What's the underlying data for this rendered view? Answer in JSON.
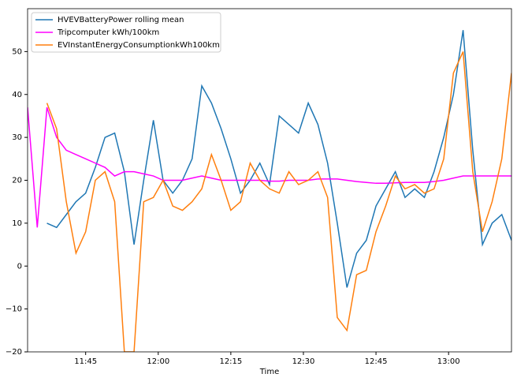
{
  "chart_data": {
    "type": "line",
    "xlabel": "Time",
    "x": [
      "11:33",
      "11:35",
      "11:37",
      "11:39",
      "11:41",
      "11:43",
      "11:45",
      "11:47",
      "11:49",
      "11:51",
      "11:53",
      "11:55",
      "11:57",
      "11:59",
      "12:01",
      "12:03",
      "12:05",
      "12:07",
      "12:09",
      "12:11",
      "12:13",
      "12:15",
      "12:17",
      "12:19",
      "12:21",
      "12:23",
      "12:25",
      "12:27",
      "12:29",
      "12:31",
      "12:33",
      "12:35",
      "12:37",
      "12:39",
      "12:41",
      "12:43",
      "12:45",
      "12:47",
      "12:49",
      "12:51",
      "12:53",
      "12:55",
      "12:57",
      "12:59",
      "13:01",
      "13:03",
      "13:05",
      "13:07",
      "13:09",
      "13:11",
      "13:13"
    ],
    "series": [
      {
        "name": "HVEVBatteryPower rolling mean",
        "color": "#1f77b4",
        "values": [
          null,
          null,
          10,
          9,
          12,
          15,
          17,
          23,
          30,
          31,
          22,
          5,
          20,
          34,
          20,
          17,
          20,
          25,
          42,
          38,
          32,
          25,
          17,
          20,
          24,
          19,
          35,
          33,
          31,
          38,
          33,
          24,
          10,
          -5,
          3,
          6,
          14,
          18,
          22,
          16,
          18,
          16,
          22,
          30,
          40,
          55,
          27,
          5,
          10,
          12,
          6
        ]
      },
      {
        "name": "Tripcomputer kWh/100km",
        "color": "#ff00ff",
        "values": [
          37,
          9,
          37,
          30,
          27,
          26,
          25,
          24,
          23,
          21,
          22,
          22,
          21.5,
          21,
          20,
          20,
          20,
          20.5,
          21,
          20.5,
          20,
          20,
          20,
          20,
          20,
          19.8,
          19.8,
          20,
          20,
          20,
          20.3,
          20.3,
          20.3,
          20,
          19.7,
          19.5,
          19.3,
          19.3,
          19.4,
          19.5,
          19.5,
          19.5,
          19.7,
          20,
          20.5,
          21,
          21,
          21,
          21,
          21,
          21
        ]
      },
      {
        "name": "EVInstantEnergyConsumptionkWh100km",
        "color": "#ff7f0e",
        "values": [
          null,
          null,
          38,
          32,
          15,
          3,
          8,
          20,
          22,
          15,
          -20,
          -20,
          15,
          16,
          20,
          14,
          13,
          15,
          18,
          26,
          20,
          13,
          15,
          24,
          20,
          18,
          17,
          22,
          19,
          20,
          22,
          16,
          -12,
          -15,
          -2,
          -1,
          8,
          14,
          21,
          18,
          19,
          17,
          18,
          25,
          45,
          50,
          22,
          8,
          15,
          25,
          45
        ]
      }
    ],
    "xlim": [
      "11:33",
      "13:13"
    ],
    "xticks": [
      "11:45",
      "12:00",
      "12:15",
      "12:30",
      "12:45",
      "13:00"
    ],
    "ylim": [
      -20,
      60
    ],
    "yticks": [
      {
        "value": -20,
        "label": "−20"
      },
      {
        "value": -10,
        "label": "−10"
      },
      0,
      10,
      20,
      30,
      40,
      50
    ],
    "grid": false,
    "legend": "upper-left"
  }
}
